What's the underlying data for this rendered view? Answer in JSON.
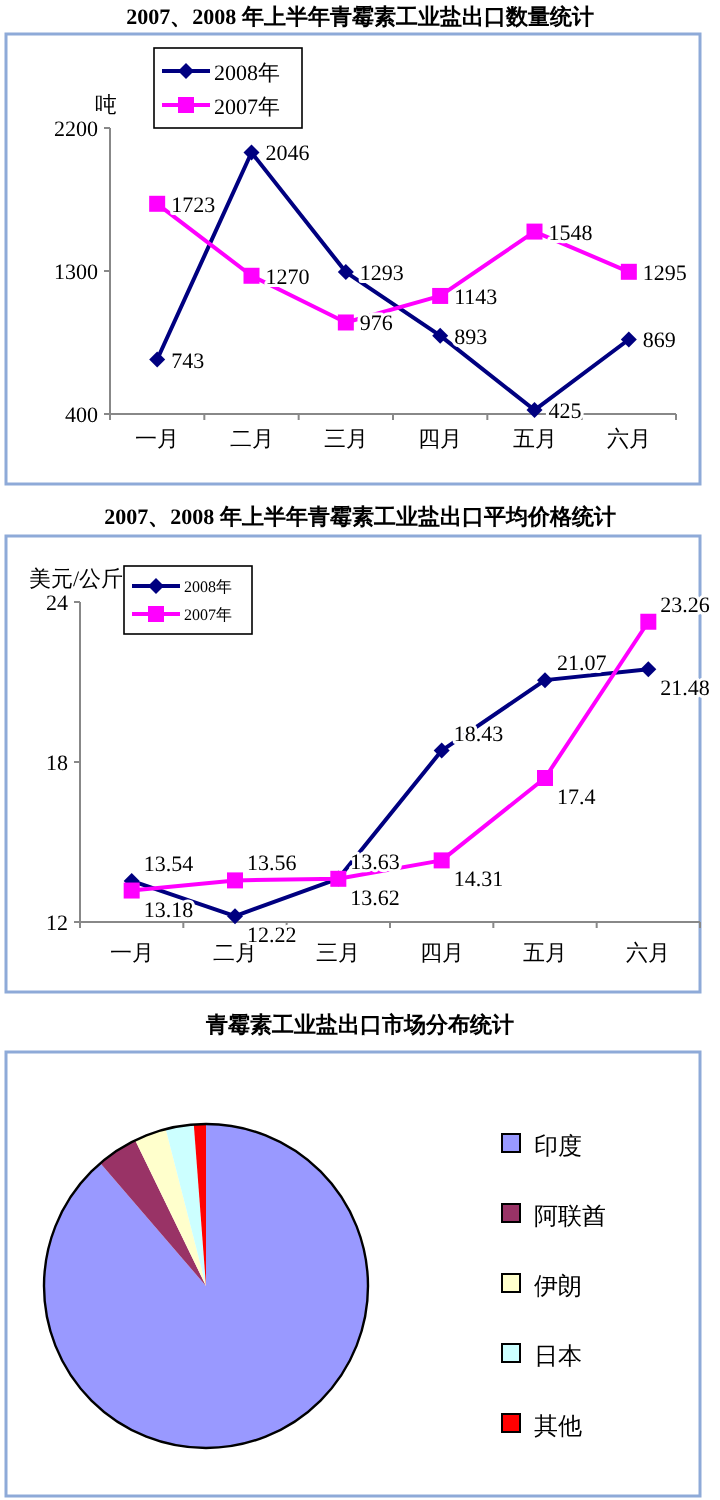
{
  "chart_data": [
    {
      "type": "line",
      "title": "2007、2008 年上半年青霉素工业盐出口数量统计",
      "ylabel": "吨",
      "categories": [
        "一月",
        "二月",
        "三月",
        "四月",
        "五月",
        "六月"
      ],
      "series": [
        {
          "name": "2008年",
          "color": "#000080",
          "marker": "diamond",
          "values": [
            743,
            2046,
            1293,
            893,
            425,
            869
          ]
        },
        {
          "name": "2007年",
          "color": "#ff00ff",
          "marker": "square",
          "values": [
            1723,
            1270,
            976,
            1143,
            1548,
            1295
          ]
        }
      ],
      "ylim": [
        400,
        2200
      ],
      "yticks": [
        400,
        1300,
        2200
      ],
      "data_labels": true,
      "legend": "top left",
      "grid": false
    },
    {
      "type": "line",
      "title": "2007、2008 年上半年青霉素工业盐出口平均价格统计",
      "ylabel": "美元/公斤",
      "categories": [
        "一月",
        "二月",
        "三月",
        "四月",
        "五月",
        "六月"
      ],
      "series": [
        {
          "name": "2008年",
          "color": "#000080",
          "marker": "diamond",
          "values": [
            13.54,
            12.22,
            13.63,
            18.43,
            21.07,
            21.48
          ]
        },
        {
          "name": "2007年",
          "color": "#ff00ff",
          "marker": "square",
          "values": [
            13.18,
            13.56,
            13.62,
            14.31,
            17.4,
            23.26
          ]
        }
      ],
      "ylim": [
        12,
        24
      ],
      "yticks": [
        12,
        18,
        24
      ],
      "data_labels": true,
      "legend": "top left",
      "grid": false
    },
    {
      "type": "pie",
      "title": "青霉素工业盐出口市场分布统计",
      "categories": [
        "印度",
        "阿联酋",
        "伊朗",
        "日本",
        "其他"
      ],
      "values": [
        88.7,
        4.1,
        3.2,
        2.8,
        1.2
      ],
      "colors": [
        "#9999ff",
        "#993366",
        "#ffffcc",
        "#ccffff",
        "#ff0000"
      ],
      "legend": "right"
    }
  ]
}
